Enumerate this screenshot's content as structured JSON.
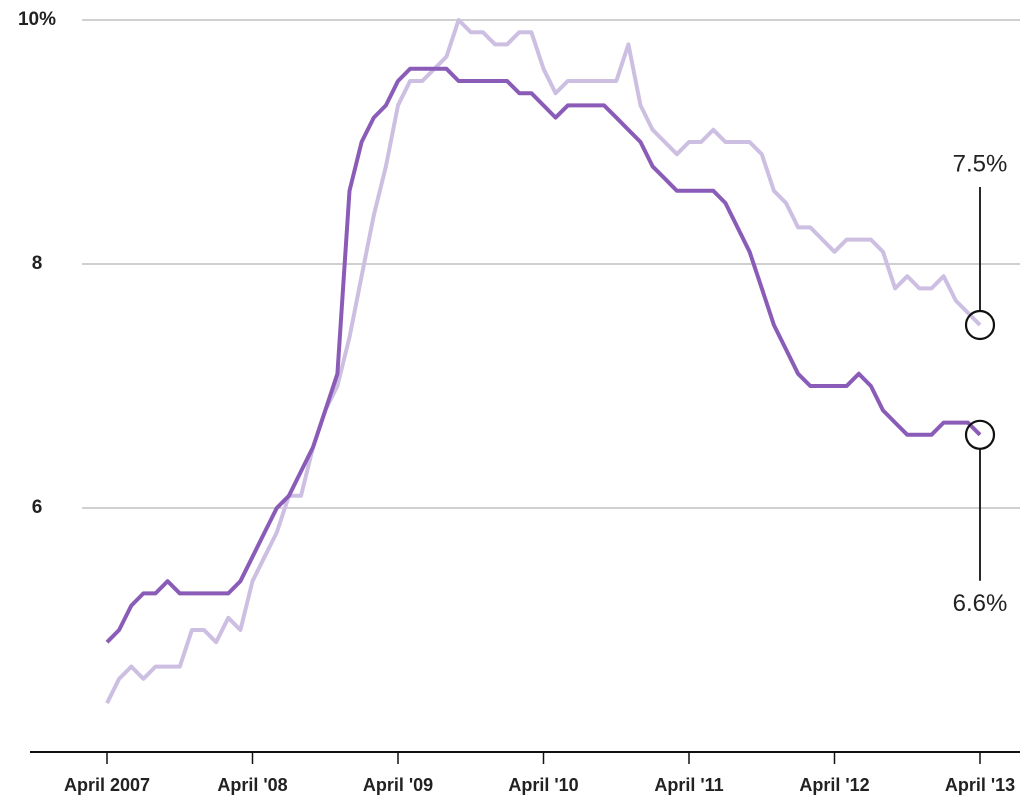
{
  "chart_data": {
    "type": "line",
    "categories": [
      "April 2007",
      null,
      null,
      null,
      null,
      null,
      null,
      null,
      null,
      null,
      null,
      null,
      "April '08",
      null,
      null,
      null,
      null,
      null,
      null,
      null,
      null,
      null,
      null,
      null,
      "April '09",
      null,
      null,
      null,
      null,
      null,
      null,
      null,
      null,
      null,
      null,
      null,
      "April '10",
      null,
      null,
      null,
      null,
      null,
      null,
      null,
      null,
      null,
      null,
      null,
      "April '11",
      null,
      null,
      null,
      null,
      null,
      null,
      null,
      null,
      null,
      null,
      null,
      "April '12",
      null,
      null,
      null,
      null,
      null,
      null,
      null,
      null,
      null,
      null,
      null,
      "April '13"
    ],
    "series": [
      {
        "color": "#8a5cb8",
        "values": [
          4.9,
          5.0,
          5.2,
          5.3,
          5.3,
          5.4,
          5.3,
          5.3,
          5.3,
          5.3,
          5.3,
          5.4,
          5.6,
          5.8,
          6.0,
          6.1,
          6.3,
          6.5,
          6.8,
          7.1,
          8.6,
          9.0,
          9.2,
          9.3,
          9.5,
          9.6,
          9.6,
          9.6,
          9.6,
          9.5,
          9.5,
          9.5,
          9.5,
          9.5,
          9.4,
          9.4,
          9.3,
          9.2,
          9.3,
          9.3,
          9.3,
          9.3,
          9.2,
          9.1,
          9.0,
          8.8,
          8.7,
          8.6,
          8.6,
          8.6,
          8.6,
          8.5,
          8.3,
          8.1,
          7.8,
          7.5,
          7.3,
          7.1,
          7.0,
          7.0,
          7.0,
          7.0,
          7.1,
          7.0,
          6.8,
          6.7,
          6.6,
          6.6,
          6.6,
          6.7,
          6.7,
          6.7,
          6.6
        ],
        "value_labels": [
          null,
          null,
          null,
          null,
          null,
          null,
          null,
          null,
          null,
          null,
          null,
          null,
          null,
          null,
          null,
          null,
          null,
          null,
          null,
          null,
          null,
          null,
          null,
          null,
          null,
          null,
          null,
          null,
          null,
          null,
          null,
          null,
          null,
          null,
          null,
          null,
          null,
          null,
          null,
          null,
          null,
          null,
          null,
          null,
          null,
          null,
          null,
          null,
          null,
          null,
          null,
          null,
          null,
          null,
          null,
          null,
          null,
          null,
          null,
          null,
          null,
          null,
          null,
          null,
          null,
          null,
          null,
          null,
          null,
          null,
          null,
          null,
          "6.6%"
        ]
      },
      {
        "color": "#cdbfe2",
        "values": [
          4.4,
          4.6,
          4.7,
          4.6,
          4.7,
          4.7,
          4.7,
          5.0,
          5.0,
          4.9,
          5.1,
          5.0,
          5.4,
          5.6,
          5.8,
          6.1,
          6.1,
          6.5,
          6.8,
          7.0,
          7.4,
          7.9,
          8.4,
          8.8,
          9.3,
          9.5,
          9.5,
          9.6,
          9.7,
          10.0,
          9.9,
          9.9,
          9.8,
          9.8,
          9.9,
          9.9,
          9.6,
          9.4,
          9.5,
          9.5,
          9.5,
          9.5,
          9.5,
          9.8,
          9.3,
          9.1,
          9.0,
          8.9,
          9.0,
          9.0,
          9.1,
          9.0,
          9.0,
          9.0,
          8.9,
          8.6,
          8.5,
          8.3,
          8.3,
          8.2,
          8.1,
          8.2,
          8.2,
          8.2,
          8.1,
          7.8,
          7.9,
          7.8,
          7.8,
          7.9,
          7.7,
          7.6,
          7.5
        ],
        "value_labels": [
          null,
          null,
          null,
          null,
          null,
          null,
          null,
          null,
          null,
          null,
          null,
          null,
          null,
          null,
          null,
          null,
          null,
          null,
          null,
          null,
          null,
          null,
          null,
          null,
          null,
          null,
          null,
          null,
          null,
          null,
          null,
          null,
          null,
          null,
          null,
          null,
          null,
          null,
          null,
          null,
          null,
          null,
          null,
          null,
          null,
          null,
          null,
          null,
          null,
          null,
          null,
          null,
          null,
          null,
          null,
          null,
          null,
          null,
          null,
          null,
          null,
          null,
          null,
          null,
          null,
          null,
          null,
          null,
          null,
          null,
          null,
          null,
          "7.5%"
        ]
      }
    ],
    "ylim": [
      4,
      10
    ],
    "yticks": [
      6,
      8,
      {
        "value": 10,
        "label": "10%"
      }
    ],
    "grid": true
  }
}
